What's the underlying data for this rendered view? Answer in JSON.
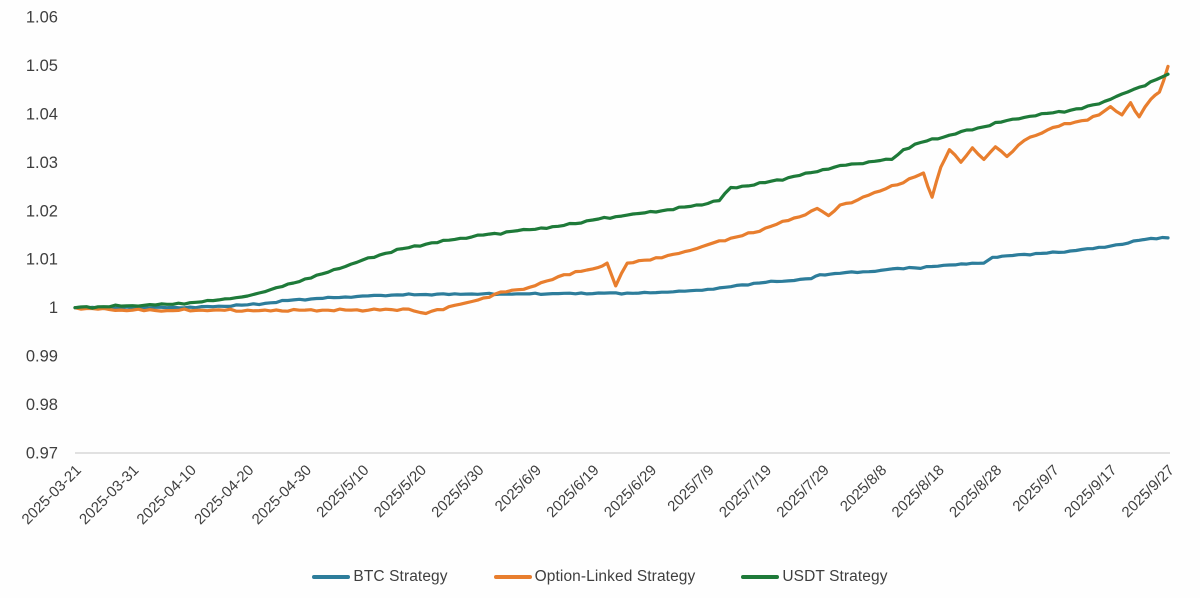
{
  "chart_data": {
    "type": "line",
    "title": "",
    "xlabel": "",
    "ylabel": "",
    "y_min": 0.97,
    "y_max": 1.06,
    "y_tick_labels": [
      "1.06",
      "1.05",
      "1.04",
      "1.03",
      "1.02",
      "1.01",
      "1",
      "0.99",
      "0.98",
      "0.97"
    ],
    "x_tick_labels": [
      "2025-03-21",
      "2025-03-31",
      "2025-04-10",
      "2025-04-20",
      "2025-04-30",
      "2025/5/10",
      "2025/5/20",
      "2025/5/30",
      "2025/6/9",
      "2025/6/19",
      "2025/6/29",
      "2025/7/9",
      "2025/7/19",
      "2025/7/29",
      "2025/8/8",
      "2025/8/18",
      "2025/8/28",
      "2025/9/7",
      "2025/9/17",
      "2025/9/27"
    ],
    "x_day_min": 0,
    "x_day_max": 190,
    "tick_interval_days": 10,
    "grid": "off",
    "baseline_value": 0.97,
    "legend_position": "bottom",
    "axis_color": "#d7d7d7",
    "tick_label_color": "#3f3f3f",
    "series": [
      {
        "name": "BTC Strategy",
        "color": "#2d7d9b",
        "points": [
          [
            0,
            1.0
          ],
          [
            6,
            0.9999
          ],
          [
            12,
            1.0
          ],
          [
            18,
            1.0
          ],
          [
            24,
            1.0002
          ],
          [
            30,
            1.0006
          ],
          [
            34,
            1.001
          ],
          [
            38,
            1.0016
          ],
          [
            42,
            1.0019
          ],
          [
            46,
            1.0021
          ],
          [
            50,
            1.0024
          ],
          [
            55,
            1.0026
          ],
          [
            60,
            1.0027
          ],
          [
            68,
            1.0028
          ],
          [
            76,
            1.0028
          ],
          [
            84,
            1.0029
          ],
          [
            92,
            1.003
          ],
          [
            98,
            1.003
          ],
          [
            103,
            1.0032
          ],
          [
            107,
            1.0035
          ],
          [
            110,
            1.0038
          ],
          [
            113,
            1.0042
          ],
          [
            116,
            1.0047
          ],
          [
            119,
            1.0051
          ],
          [
            122,
            1.0054
          ],
          [
            125,
            1.0056
          ],
          [
            128,
            1.006
          ],
          [
            129.5,
            1.0068
          ],
          [
            133,
            1.0071
          ],
          [
            137,
            1.0074
          ],
          [
            140,
            1.0077
          ],
          [
            143,
            1.0081
          ],
          [
            145,
            1.0083
          ],
          [
            147,
            1.0081
          ],
          [
            149,
            1.0085
          ],
          [
            152,
            1.0088
          ],
          [
            155,
            1.009
          ],
          [
            158,
            1.0092
          ],
          [
            159.5,
            1.0104
          ],
          [
            162,
            1.0107
          ],
          [
            165,
            1.011
          ],
          [
            168,
            1.0112
          ],
          [
            171,
            1.0114
          ],
          [
            174,
            1.0118
          ],
          [
            177,
            1.0122
          ],
          [
            180,
            1.0127
          ],
          [
            183,
            1.0133
          ],
          [
            185,
            1.0139
          ],
          [
            187,
            1.0143
          ],
          [
            190,
            1.0144
          ]
        ]
      },
      {
        "name": "Option-Linked Strategy",
        "color": "#e87e2e",
        "points": [
          [
            0,
            1.0
          ],
          [
            4,
            0.9997
          ],
          [
            8,
            0.9995
          ],
          [
            16,
            0.9994
          ],
          [
            24,
            0.9995
          ],
          [
            32,
            0.9994
          ],
          [
            40,
            0.9995
          ],
          [
            48,
            0.9995
          ],
          [
            55,
            0.9996
          ],
          [
            58,
            0.9997
          ],
          [
            60,
            0.999
          ],
          [
            61,
            0.9988
          ],
          [
            63,
            0.9996
          ],
          [
            65,
            1.0002
          ],
          [
            68,
            1.001
          ],
          [
            71,
            1.002
          ],
          [
            73,
            1.0028
          ],
          [
            76,
            1.0036
          ],
          [
            79,
            1.0042
          ],
          [
            82,
            1.0055
          ],
          [
            85,
            1.0068
          ],
          [
            88,
            1.0075
          ],
          [
            90,
            1.008
          ],
          [
            92.5,
            1.0092
          ],
          [
            94,
            1.0045
          ],
          [
            96,
            1.0092
          ],
          [
            99,
            1.0098
          ],
          [
            102,
            1.0103
          ],
          [
            105,
            1.0112
          ],
          [
            109,
            1.0126
          ],
          [
            112,
            1.0138
          ],
          [
            115,
            1.0146
          ],
          [
            118,
            1.0155
          ],
          [
            121,
            1.0168
          ],
          [
            124,
            1.018
          ],
          [
            127,
            1.0192
          ],
          [
            129,
            1.0205
          ],
          [
            131,
            1.019
          ],
          [
            133,
            1.0212
          ],
          [
            136,
            1.0222
          ],
          [
            139,
            1.0238
          ],
          [
            142,
            1.0252
          ],
          [
            144,
            1.0258
          ],
          [
            146,
            1.027
          ],
          [
            147.5,
            1.0278
          ],
          [
            149,
            1.0228
          ],
          [
            150.5,
            1.029
          ],
          [
            152,
            1.0326
          ],
          [
            154,
            1.03
          ],
          [
            156,
            1.033
          ],
          [
            158,
            1.0306
          ],
          [
            160,
            1.0332
          ],
          [
            162,
            1.0312
          ],
          [
            165,
            1.0345
          ],
          [
            168,
            1.036
          ],
          [
            170,
            1.0372
          ],
          [
            173,
            1.038
          ],
          [
            175,
            1.0386
          ],
          [
            178,
            1.0398
          ],
          [
            180,
            1.0415
          ],
          [
            182,
            1.0398
          ],
          [
            183.5,
            1.0423
          ],
          [
            185,
            1.0394
          ],
          [
            187,
            1.043
          ],
          [
            188.5,
            1.0445
          ],
          [
            190,
            1.0498
          ]
        ]
      },
      {
        "name": "USDT Strategy",
        "color": "#1e7a39",
        "points": [
          [
            0,
            1.0
          ],
          [
            5,
            1.0002
          ],
          [
            10,
            1.0004
          ],
          [
            16,
            1.0007
          ],
          [
            21,
            1.0011
          ],
          [
            25,
            1.0016
          ],
          [
            29,
            1.0022
          ],
          [
            33,
            1.0033
          ],
          [
            38,
            1.0051
          ],
          [
            43,
            1.007
          ],
          [
            48,
            1.009
          ],
          [
            53,
            1.0109
          ],
          [
            57,
            1.0122
          ],
          [
            61,
            1.0131
          ],
          [
            66,
            1.0141
          ],
          [
            71,
            1.015
          ],
          [
            77,
            1.0159
          ],
          [
            84,
            1.0168
          ],
          [
            90,
            1.0181
          ],
          [
            96,
            1.0191
          ],
          [
            102,
            1.02
          ],
          [
            107,
            1.0209
          ],
          [
            112,
            1.0221
          ],
          [
            114,
            1.0248
          ],
          [
            118,
            1.0253
          ],
          [
            121,
            1.0261
          ],
          [
            126,
            1.0273
          ],
          [
            130,
            1.0285
          ],
          [
            134,
            1.0294
          ],
          [
            138,
            1.0301
          ],
          [
            142,
            1.0306
          ],
          [
            144,
            1.0326
          ],
          [
            147,
            1.0341
          ],
          [
            152,
            1.0356
          ],
          [
            157,
            1.0371
          ],
          [
            163,
            1.0389
          ],
          [
            169,
            1.0401
          ],
          [
            175,
            1.0411
          ],
          [
            179,
            1.0426
          ],
          [
            182,
            1.0441
          ],
          [
            185,
            1.0455
          ],
          [
            188,
            1.0471
          ],
          [
            190,
            1.0482
          ]
        ]
      }
    ],
    "render_hints": {
      "plot_left": 75,
      "plot_right": 1168,
      "plot_top": 17,
      "plot_bottom": 453,
      "line_width": 3.2,
      "jitter": [
        0.0002,
        0.00032,
        0.00028
      ]
    }
  }
}
